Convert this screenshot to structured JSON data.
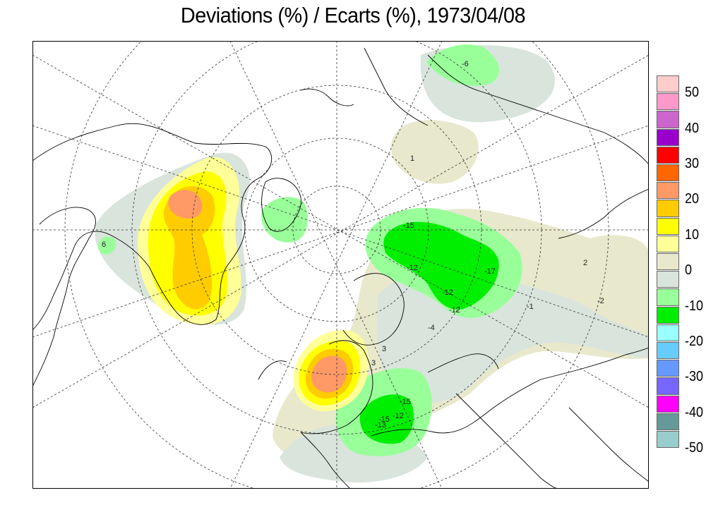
{
  "title": "Deviations (%) / Ecarts (%), 1973/04/08",
  "legend": {
    "colors": [
      "#ffcccc",
      "#ff99cc",
      "#cc66cc",
      "#9900cc",
      "#ff0000",
      "#ff6600",
      "#ff9966",
      "#ffcc00",
      "#ffff00",
      "#ffff99",
      "#e8e8cc",
      "#d8e4dc",
      "#99ff99",
      "#00ee00",
      "#99ffff",
      "#66ccff",
      "#6699ff",
      "#7766ff",
      "#ff00ff",
      "#669999",
      "#99cccc"
    ],
    "labels": [
      "50",
      "40",
      "30",
      "20",
      "10",
      "0",
      "-10",
      "-20",
      "-30",
      "-40",
      "-50"
    ]
  },
  "map": {
    "contour_labels": [
      "6",
      "-15",
      "-12",
      "-17",
      "-12",
      "-12",
      "-15",
      "-13",
      "-12",
      "-15",
      "3",
      "3",
      "2",
      "-2",
      "-4",
      "-6",
      "1",
      "-1"
    ]
  }
}
